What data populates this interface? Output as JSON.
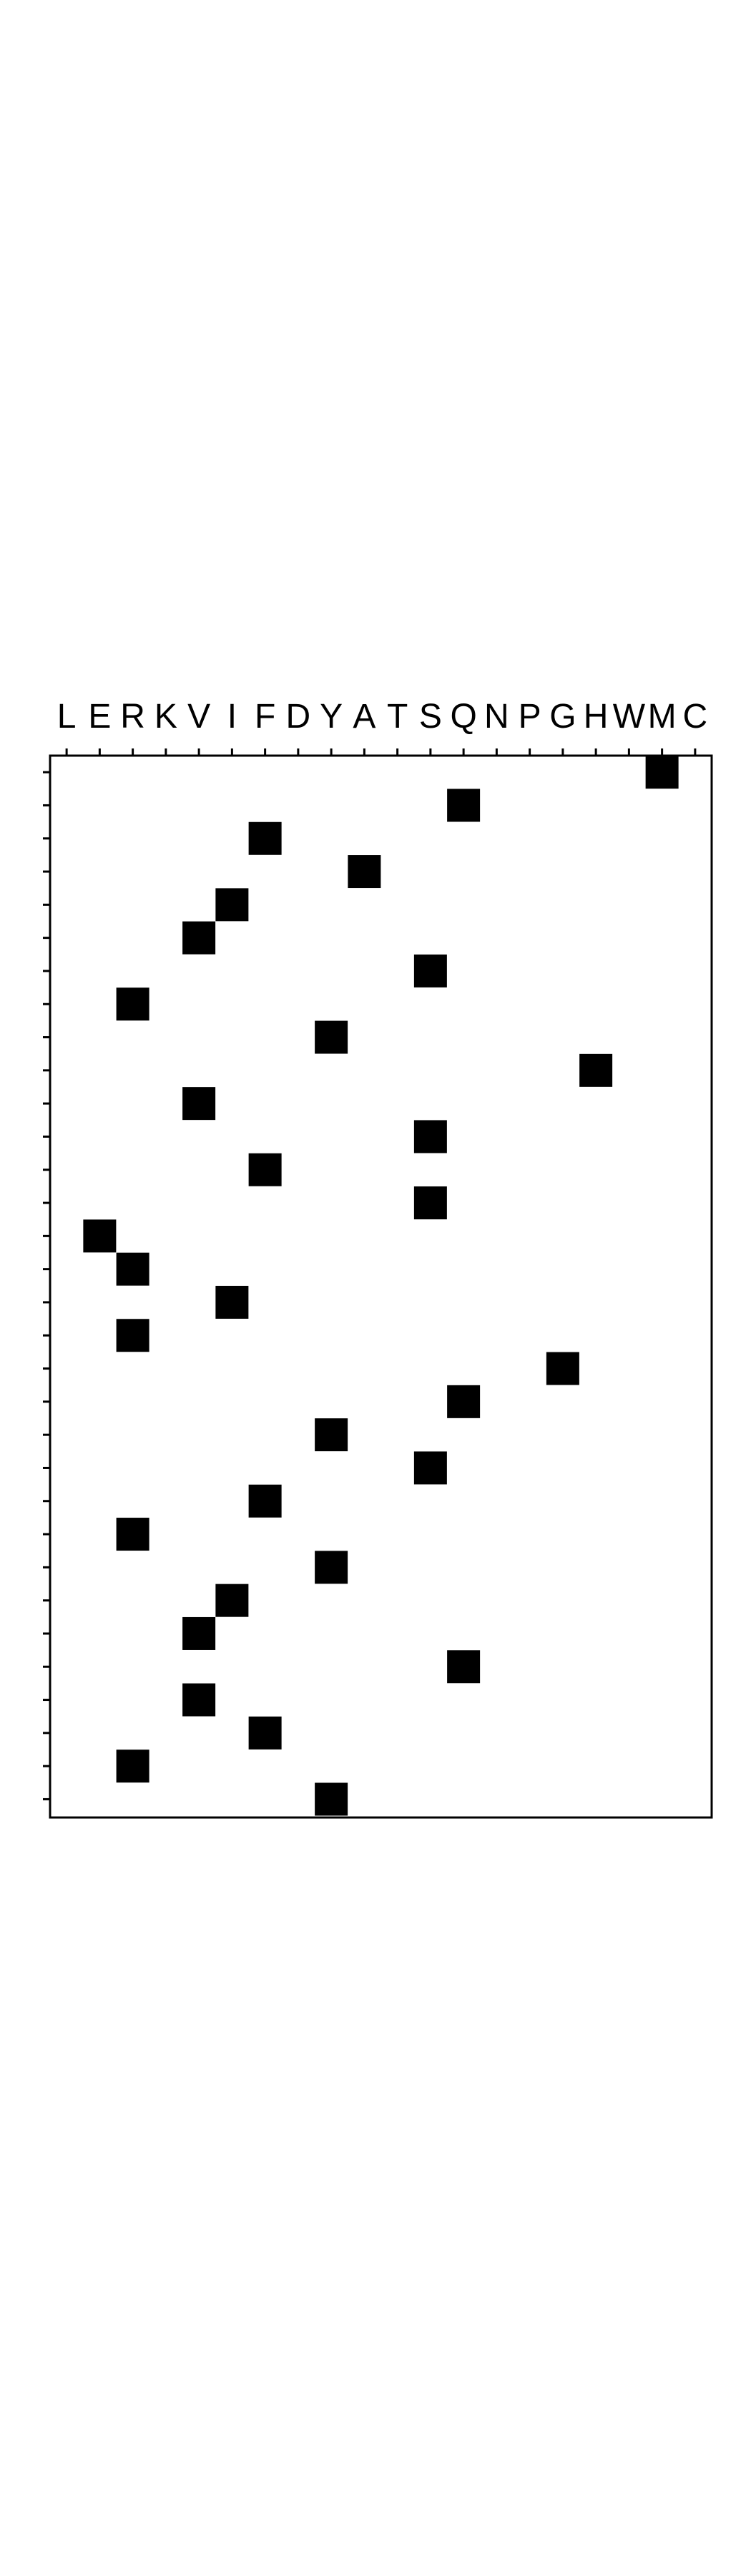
{
  "chart_data": {
    "type": "heatmap",
    "title": "",
    "xlabel": "",
    "ylabel": "",
    "x_categories": [
      "L",
      "E",
      "R",
      "K",
      "V",
      "I",
      "F",
      "D",
      "Y",
      "A",
      "T",
      "S",
      "Q",
      "N",
      "P",
      "G",
      "H",
      "W",
      "M",
      "C"
    ],
    "rows": 32,
    "cells": [
      {
        "row": 0,
        "x": "M"
      },
      {
        "row": 1,
        "x": "Q"
      },
      {
        "row": 2,
        "x": "F"
      },
      {
        "row": 3,
        "x": "A"
      },
      {
        "row": 4,
        "x": "I"
      },
      {
        "row": 5,
        "x": "V"
      },
      {
        "row": 6,
        "x": "S"
      },
      {
        "row": 7,
        "x": "R"
      },
      {
        "row": 8,
        "x": "Y"
      },
      {
        "row": 9,
        "x": "H"
      },
      {
        "row": 10,
        "x": "V"
      },
      {
        "row": 11,
        "x": "S"
      },
      {
        "row": 12,
        "x": "F"
      },
      {
        "row": 13,
        "x": "S"
      },
      {
        "row": 14,
        "x": "E"
      },
      {
        "row": 15,
        "x": "R"
      },
      {
        "row": 16,
        "x": "I"
      },
      {
        "row": 17,
        "x": "R"
      },
      {
        "row": 18,
        "x": "G"
      },
      {
        "row": 19,
        "x": "Q"
      },
      {
        "row": 20,
        "x": "Y"
      },
      {
        "row": 21,
        "x": "S"
      },
      {
        "row": 22,
        "x": "F"
      },
      {
        "row": 23,
        "x": "R"
      },
      {
        "row": 24,
        "x": "Y"
      },
      {
        "row": 25,
        "x": "I"
      },
      {
        "row": 26,
        "x": "V"
      },
      {
        "row": 27,
        "x": "Q"
      },
      {
        "row": 28,
        "x": "V"
      },
      {
        "row": 29,
        "x": "F"
      },
      {
        "row": 30,
        "x": "R"
      },
      {
        "row": 31,
        "x": "Y"
      }
    ],
    "cell_color": "#000000",
    "background": "#ffffff",
    "grid": false,
    "legend": "none"
  }
}
